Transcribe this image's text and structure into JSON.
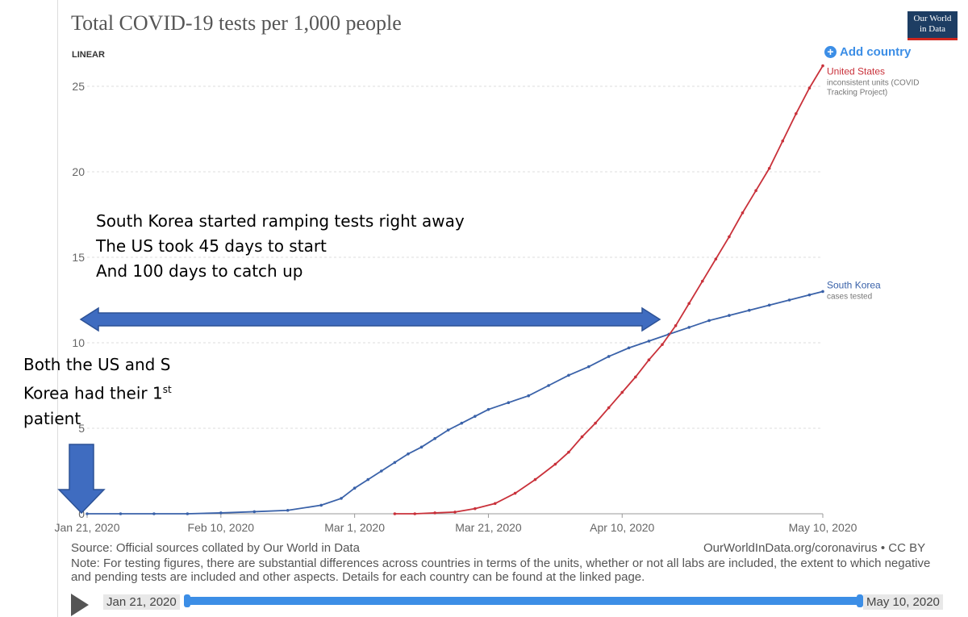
{
  "title": "Total COVID-19 tests per 1,000 people",
  "logo": {
    "line1": "Our World",
    "line2": "in Data"
  },
  "scale_toggle": "LINEAR",
  "add_country": "Add country",
  "colors": {
    "us": "#c9313a",
    "sk": "#3a62a9",
    "arrow": "#3f6cc0",
    "accent": "#3c8ee6"
  },
  "annotations": {
    "line1": "South Korea started ramping tests right away",
    "line2": "The US took 45 days to start",
    "line3": "And 100 days to catch up",
    "first_patient_a": "Both the US and S",
    "first_patient_b": "Korea had their 1",
    "first_patient_sup": "st",
    "first_patient_c": "patient"
  },
  "source": "Source: Official sources collated by Our World in Data",
  "credit": "OurWorldInData.org/coronavirus • CC BY",
  "note": "Note: For testing figures, there are substantial differences across countries in terms of the units, whether or not all labs are included, the extent to which negative and pending tests are included and other aspects. Details for each country can be found at the linked page.",
  "timeline": {
    "start": "Jan 21, 2020",
    "end": "May 10, 2020"
  },
  "chart_data": {
    "type": "line",
    "title": "Total COVID-19 tests per 1,000 people",
    "y_scale": "linear",
    "ylim": [
      0,
      26
    ],
    "yticks": [
      0,
      5,
      10,
      15,
      20,
      25
    ],
    "xlim": [
      "2020-01-21",
      "2020-05-10"
    ],
    "xticks": [
      "Jan 21, 2020",
      "Feb 10, 2020",
      "Mar 1, 2020",
      "Mar 21, 2020",
      "Apr 10, 2020",
      "May 10, 2020"
    ],
    "xtick_dates": [
      "2020-01-21",
      "2020-02-10",
      "2020-03-01",
      "2020-03-21",
      "2020-04-10",
      "2020-05-10"
    ],
    "grid": true,
    "series": [
      {
        "name": "South Korea",
        "note": "cases tested",
        "color": "#3a62a9",
        "points": [
          [
            "2020-01-21",
            0
          ],
          [
            "2020-01-26",
            0
          ],
          [
            "2020-01-31",
            0
          ],
          [
            "2020-02-05",
            0
          ],
          [
            "2020-02-10",
            0.05
          ],
          [
            "2020-02-15",
            0.12
          ],
          [
            "2020-02-20",
            0.2
          ],
          [
            "2020-02-25",
            0.5
          ],
          [
            "2020-02-28",
            0.9
          ],
          [
            "2020-03-01",
            1.5
          ],
          [
            "2020-03-03",
            2.0
          ],
          [
            "2020-03-05",
            2.5
          ],
          [
            "2020-03-07",
            3.0
          ],
          [
            "2020-03-09",
            3.5
          ],
          [
            "2020-03-11",
            3.9
          ],
          [
            "2020-03-13",
            4.4
          ],
          [
            "2020-03-15",
            4.9
          ],
          [
            "2020-03-17",
            5.3
          ],
          [
            "2020-03-19",
            5.7
          ],
          [
            "2020-03-21",
            6.1
          ],
          [
            "2020-03-24",
            6.5
          ],
          [
            "2020-03-27",
            6.9
          ],
          [
            "2020-03-30",
            7.5
          ],
          [
            "2020-04-02",
            8.1
          ],
          [
            "2020-04-05",
            8.6
          ],
          [
            "2020-04-08",
            9.2
          ],
          [
            "2020-04-11",
            9.7
          ],
          [
            "2020-04-14",
            10.1
          ],
          [
            "2020-04-17",
            10.5
          ],
          [
            "2020-04-20",
            10.9
          ],
          [
            "2020-04-23",
            11.3
          ],
          [
            "2020-04-26",
            11.6
          ],
          [
            "2020-04-29",
            11.9
          ],
          [
            "2020-05-02",
            12.2
          ],
          [
            "2020-05-05",
            12.5
          ],
          [
            "2020-05-08",
            12.8
          ],
          [
            "2020-05-10",
            13.0
          ]
        ]
      },
      {
        "name": "United States",
        "note": "inconsistent units (COVID Tracking Project)",
        "color": "#c9313a",
        "points": [
          [
            "2020-03-07",
            0
          ],
          [
            "2020-03-10",
            0
          ],
          [
            "2020-03-13",
            0.05
          ],
          [
            "2020-03-16",
            0.1
          ],
          [
            "2020-03-19",
            0.3
          ],
          [
            "2020-03-22",
            0.6
          ],
          [
            "2020-03-25",
            1.2
          ],
          [
            "2020-03-28",
            2.0
          ],
          [
            "2020-03-31",
            2.9
          ],
          [
            "2020-04-02",
            3.6
          ],
          [
            "2020-04-04",
            4.5
          ],
          [
            "2020-04-06",
            5.3
          ],
          [
            "2020-04-08",
            6.2
          ],
          [
            "2020-04-10",
            7.1
          ],
          [
            "2020-04-12",
            8.0
          ],
          [
            "2020-04-14",
            9.0
          ],
          [
            "2020-04-16",
            9.9
          ],
          [
            "2020-04-18",
            11.0
          ],
          [
            "2020-04-20",
            12.3
          ],
          [
            "2020-04-22",
            13.6
          ],
          [
            "2020-04-24",
            14.9
          ],
          [
            "2020-04-26",
            16.2
          ],
          [
            "2020-04-28",
            17.6
          ],
          [
            "2020-04-30",
            18.9
          ],
          [
            "2020-05-02",
            20.2
          ],
          [
            "2020-05-04",
            21.8
          ],
          [
            "2020-05-06",
            23.4
          ],
          [
            "2020-05-08",
            24.9
          ],
          [
            "2020-05-10",
            26.2
          ]
        ]
      }
    ]
  }
}
